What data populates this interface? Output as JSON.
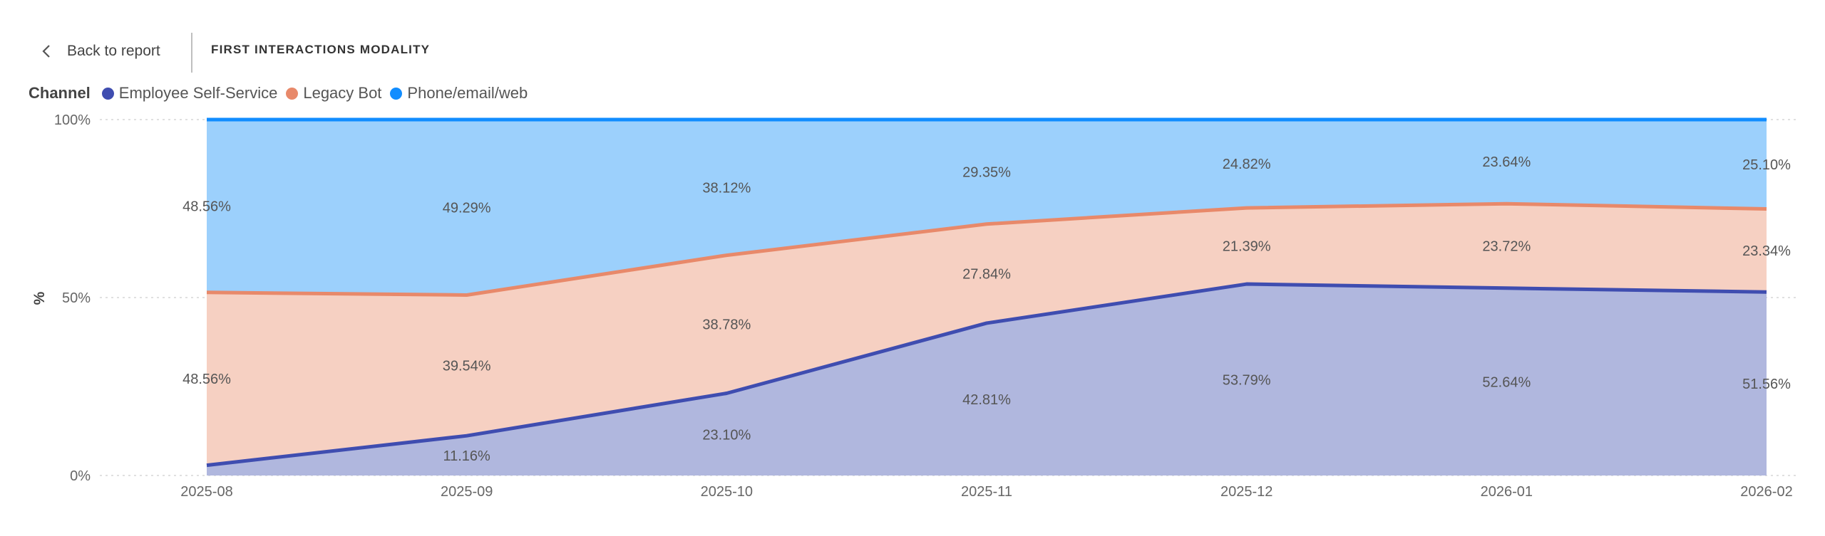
{
  "header": {
    "back_label": "Back to report",
    "title": "FIRST INTERACTIONS MODALITY"
  },
  "legend": {
    "title": "Channel"
  },
  "colors": {
    "ess_line": "#3f4db0",
    "ess_fill": "#b0b7de",
    "legacy_line": "#e8896a",
    "legacy_fill": "#f6d0c2",
    "phone_line": "#118dff",
    "phone_fill": "#9cd0fc"
  },
  "chart_data": {
    "type": "area",
    "stacked": "100%",
    "title": "",
    "xlabel": "",
    "ylabel": "%",
    "x": [
      "2025-08",
      "2025-09",
      "2025-10",
      "2025-11",
      "2025-12",
      "2026-01",
      "2026-02"
    ],
    "series": [
      {
        "name": "Employee Self-Service",
        "values": [
          2.88,
          11.16,
          23.1,
          42.81,
          53.79,
          52.64,
          51.56
        ],
        "labels": [
          "",
          "11.16%",
          "23.10%",
          "42.81%",
          "53.79%",
          "52.64%",
          "51.56%"
        ]
      },
      {
        "name": "Legacy Bot",
        "values": [
          48.56,
          39.54,
          38.78,
          27.84,
          21.39,
          23.72,
          23.34
        ],
        "labels": [
          "48.56%",
          "39.54%",
          "38.78%",
          "27.84%",
          "21.39%",
          "23.72%",
          "23.34%"
        ]
      },
      {
        "name": "Phone/email/web",
        "values": [
          48.56,
          49.29,
          38.12,
          29.35,
          24.82,
          23.64,
          25.1
        ],
        "labels": [
          "48.56%",
          "49.29%",
          "38.12%",
          "29.35%",
          "24.82%",
          "23.64%",
          "25.10%"
        ]
      }
    ],
    "yticks": [
      "0%",
      "50%",
      "100%"
    ],
    "ylim": [
      0,
      100
    ],
    "grid": true,
    "legend_position": "top-left"
  }
}
